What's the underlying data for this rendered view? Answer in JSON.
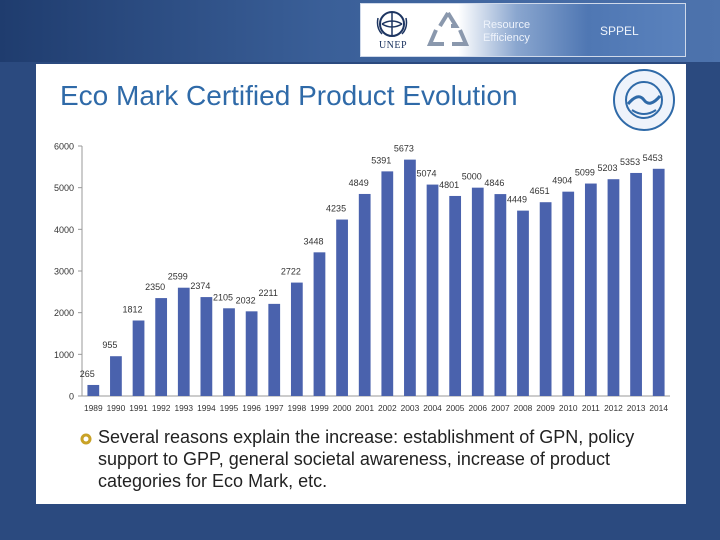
{
  "header": {
    "logo_text": "UNEP",
    "resource_line1": "Resource",
    "resource_line2": "Efficiency",
    "sppel": "SPPEL"
  },
  "title": "Eco Mark Certified Product Evolution",
  "bullet": "Several reasons explain the increase: establishment of GPN, policy support to GPP, general societal awareness, increase of product categories for Eco Mark, etc.",
  "colors": {
    "bar": "#4a62ad",
    "title": "#2f6aa8",
    "axis": "#999999"
  },
  "chart_data": {
    "type": "bar",
    "categories": [
      "1989",
      "1990",
      "1991",
      "1992",
      "1993",
      "1994",
      "1995",
      "1996",
      "1997",
      "1998",
      "1999",
      "2000",
      "2001",
      "2002",
      "2003",
      "2004",
      "2005",
      "2006",
      "2007",
      "2008",
      "2009",
      "2010",
      "2011",
      "2012",
      "2013",
      "2014"
    ],
    "values": [
      265,
      955,
      1812,
      2350,
      2599,
      2374,
      2105,
      2032,
      2211,
      2722,
      3448,
      4235,
      4849,
      5391,
      5673,
      5074,
      4801,
      5000,
      4846,
      4449,
      4651,
      4904,
      5099,
      5203,
      5353,
      5453
    ],
    "ylim": [
      0,
      6000
    ],
    "yticks": [
      0,
      1000,
      2000,
      3000,
      4000,
      5000,
      6000
    ],
    "grid": false,
    "legend": "none"
  }
}
